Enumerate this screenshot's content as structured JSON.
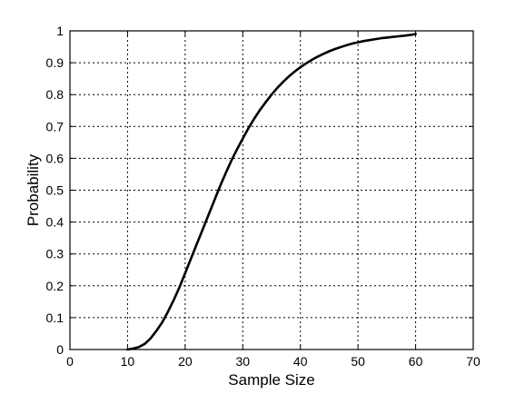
{
  "chart_data": {
    "type": "line",
    "title": "",
    "xlabel": "Sample Size",
    "ylabel": "Probability",
    "xlim": [
      0,
      70
    ],
    "ylim": [
      0,
      1
    ],
    "xticks": [
      0,
      10,
      20,
      30,
      40,
      50,
      60,
      70
    ],
    "yticks": [
      0,
      0.1,
      0.2,
      0.3,
      0.4,
      0.5,
      0.6,
      0.7,
      0.8,
      0.9,
      1
    ],
    "xtick_labels": [
      "0",
      "10",
      "20",
      "30",
      "40",
      "50",
      "60",
      "70"
    ],
    "ytick_labels": [
      "0",
      "0.1",
      "0.2",
      "0.3",
      "0.4",
      "0.5",
      "0.6",
      "0.7",
      "0.8",
      "0.9",
      "1"
    ],
    "grid": true,
    "line_color": "#000000",
    "series": [
      {
        "x": [
          10,
          11,
          12,
          13,
          14,
          15,
          16,
          17,
          18,
          19,
          20,
          21,
          22,
          23,
          24,
          25,
          26,
          27,
          28,
          29,
          30,
          31,
          32,
          33,
          34,
          35,
          36,
          37,
          38,
          39,
          40,
          41,
          42,
          43,
          44,
          45,
          46,
          47,
          48,
          49,
          50,
          51,
          52,
          53,
          54,
          55,
          56,
          57,
          58,
          59,
          60
        ],
        "y": [
          0,
          0.003,
          0.008,
          0.018,
          0.035,
          0.058,
          0.085,
          0.118,
          0.155,
          0.195,
          0.24,
          0.285,
          0.33,
          0.375,
          0.42,
          0.465,
          0.51,
          0.552,
          0.592,
          0.628,
          0.662,
          0.695,
          0.725,
          0.752,
          0.777,
          0.8,
          0.821,
          0.84,
          0.857,
          0.872,
          0.886,
          0.898,
          0.909,
          0.919,
          0.928,
          0.936,
          0.943,
          0.949,
          0.955,
          0.96,
          0.964,
          0.968,
          0.971,
          0.974,
          0.977,
          0.979,
          0.981,
          0.983,
          0.985,
          0.987,
          0.99
        ]
      }
    ]
  }
}
